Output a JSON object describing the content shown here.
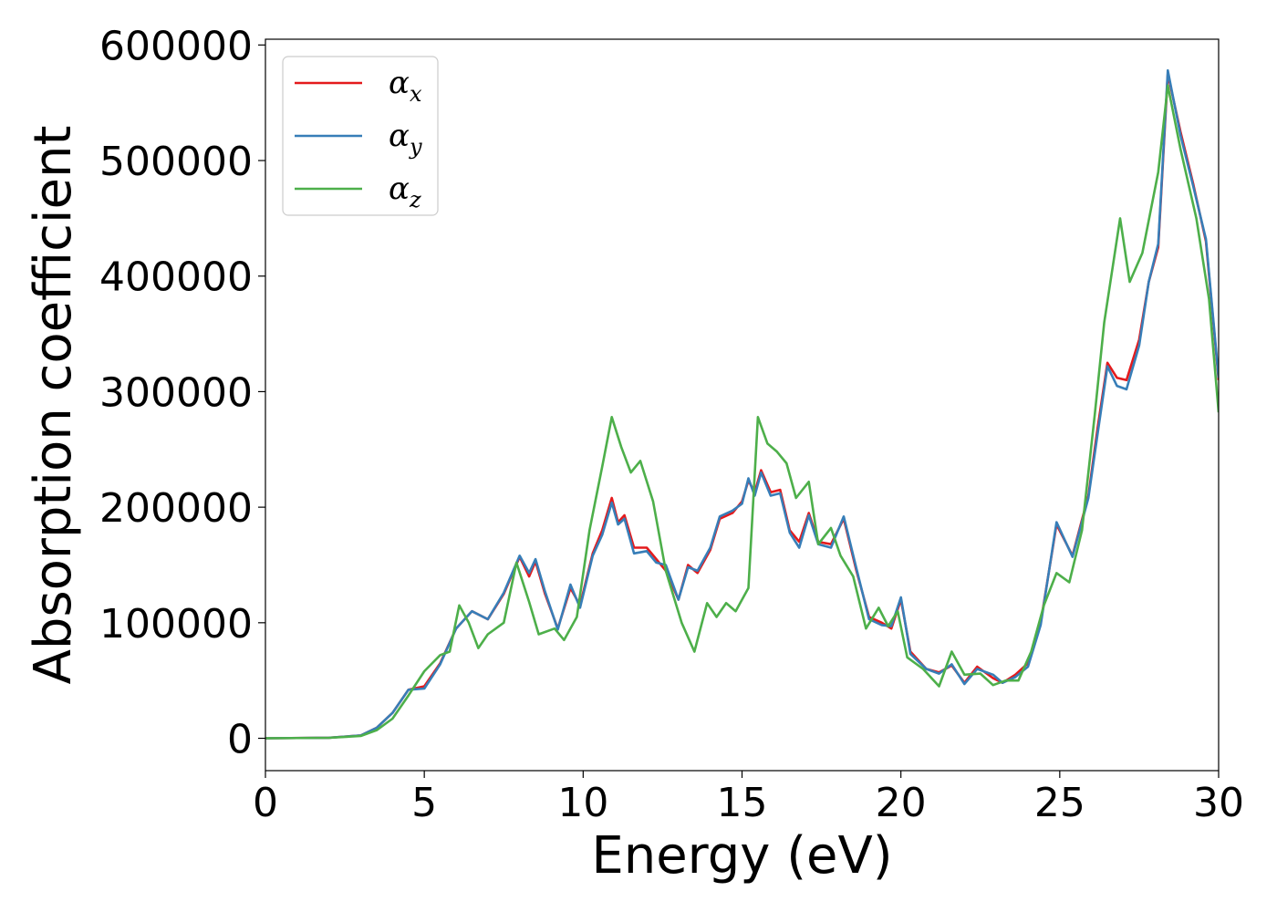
{
  "chart_data": {
    "type": "line",
    "title": "",
    "xlabel": "Energy (eV)",
    "ylabel": "Absorption coefficient",
    "xlim": [
      0,
      30
    ],
    "ylim": [
      -28000,
      605000
    ],
    "xticks": [
      0,
      5,
      10,
      15,
      20,
      25,
      30
    ],
    "xtick_labels": [
      "0",
      "5",
      "10",
      "15",
      "20",
      "25",
      "30"
    ],
    "yticks": [
      0,
      100000,
      200000,
      300000,
      400000,
      500000,
      600000
    ],
    "ytick_labels": [
      "0",
      "100000",
      "200000",
      "300000",
      "400000",
      "500000",
      "600000"
    ],
    "grid": false,
    "legend_position": "top-left",
    "series": [
      {
        "name": "α_x",
        "symbol": "α",
        "sub": "x",
        "color": "#e41a1c",
        "points": [
          [
            0,
            0
          ],
          [
            2,
            500
          ],
          [
            3,
            2500
          ],
          [
            3.5,
            9000
          ],
          [
            4,
            22000
          ],
          [
            4.5,
            42000
          ],
          [
            5,
            45000
          ],
          [
            5.5,
            65000
          ],
          [
            6,
            95000
          ],
          [
            6.5,
            110000
          ],
          [
            7,
            103000
          ],
          [
            7.5,
            125000
          ],
          [
            8,
            157000
          ],
          [
            8.3,
            140000
          ],
          [
            8.5,
            153000
          ],
          [
            8.8,
            125000
          ],
          [
            9.2,
            95000
          ],
          [
            9.6,
            130000
          ],
          [
            9.9,
            115000
          ],
          [
            10.3,
            160000
          ],
          [
            10.6,
            180000
          ],
          [
            10.9,
            208000
          ],
          [
            11.1,
            187000
          ],
          [
            11.3,
            193000
          ],
          [
            11.6,
            165000
          ],
          [
            12,
            165000
          ],
          [
            12.3,
            155000
          ],
          [
            12.6,
            145000
          ],
          [
            13,
            120000
          ],
          [
            13.3,
            150000
          ],
          [
            13.6,
            143000
          ],
          [
            14,
            163000
          ],
          [
            14.3,
            190000
          ],
          [
            14.7,
            195000
          ],
          [
            15,
            205000
          ],
          [
            15.2,
            223000
          ],
          [
            15.4,
            213000
          ],
          [
            15.6,
            232000
          ],
          [
            15.9,
            213000
          ],
          [
            16.2,
            215000
          ],
          [
            16.5,
            180000
          ],
          [
            16.8,
            170000
          ],
          [
            17.1,
            195000
          ],
          [
            17.4,
            170000
          ],
          [
            17.8,
            168000
          ],
          [
            18.2,
            190000
          ],
          [
            18.6,
            145000
          ],
          [
            19,
            105000
          ],
          [
            19.4,
            100000
          ],
          [
            19.7,
            95000
          ],
          [
            20,
            120000
          ],
          [
            20.3,
            75000
          ],
          [
            20.8,
            60000
          ],
          [
            21.2,
            57000
          ],
          [
            21.6,
            63000
          ],
          [
            22,
            48000
          ],
          [
            22.4,
            62000
          ],
          [
            22.9,
            52000
          ],
          [
            23.2,
            48000
          ],
          [
            23.6,
            55000
          ],
          [
            24,
            65000
          ],
          [
            24.4,
            100000
          ],
          [
            24.9,
            185000
          ],
          [
            25.4,
            158000
          ],
          [
            25.9,
            210000
          ],
          [
            26.2,
            270000
          ],
          [
            26.5,
            325000
          ],
          [
            26.8,
            312000
          ],
          [
            27.1,
            310000
          ],
          [
            27.5,
            345000
          ],
          [
            27.8,
            395000
          ],
          [
            28.1,
            425000
          ],
          [
            28.4,
            575000
          ],
          [
            28.8,
            525000
          ],
          [
            29.2,
            480000
          ],
          [
            29.6,
            430000
          ],
          [
            30,
            310000
          ]
        ]
      },
      {
        "name": "α_y",
        "symbol": "α",
        "sub": "y",
        "color": "#377eb8",
        "points": [
          [
            0,
            0
          ],
          [
            2,
            500
          ],
          [
            3,
            2500
          ],
          [
            3.5,
            9000
          ],
          [
            4,
            22000
          ],
          [
            4.5,
            42000
          ],
          [
            5,
            43000
          ],
          [
            5.5,
            64000
          ],
          [
            6,
            95000
          ],
          [
            6.5,
            110000
          ],
          [
            7,
            103000
          ],
          [
            7.5,
            126000
          ],
          [
            8,
            158000
          ],
          [
            8.3,
            143000
          ],
          [
            8.5,
            155000
          ],
          [
            8.8,
            127000
          ],
          [
            9.2,
            94000
          ],
          [
            9.6,
            133000
          ],
          [
            9.9,
            113000
          ],
          [
            10.3,
            158000
          ],
          [
            10.6,
            176000
          ],
          [
            10.9,
            204000
          ],
          [
            11.1,
            185000
          ],
          [
            11.3,
            190000
          ],
          [
            11.6,
            160000
          ],
          [
            12,
            162000
          ],
          [
            12.3,
            152000
          ],
          [
            12.6,
            150000
          ],
          [
            13,
            120000
          ],
          [
            13.3,
            148000
          ],
          [
            13.6,
            145000
          ],
          [
            14,
            165000
          ],
          [
            14.3,
            192000
          ],
          [
            14.7,
            197000
          ],
          [
            15,
            203000
          ],
          [
            15.2,
            225000
          ],
          [
            15.4,
            210000
          ],
          [
            15.6,
            230000
          ],
          [
            15.9,
            210000
          ],
          [
            16.2,
            212000
          ],
          [
            16.5,
            178000
          ],
          [
            16.8,
            165000
          ],
          [
            17.1,
            193000
          ],
          [
            17.4,
            168000
          ],
          [
            17.8,
            165000
          ],
          [
            18.2,
            192000
          ],
          [
            18.6,
            147000
          ],
          [
            19,
            103000
          ],
          [
            19.4,
            98000
          ],
          [
            19.7,
            97000
          ],
          [
            20,
            122000
          ],
          [
            20.3,
            73000
          ],
          [
            20.8,
            60000
          ],
          [
            21.2,
            56000
          ],
          [
            21.6,
            64000
          ],
          [
            22,
            47000
          ],
          [
            22.4,
            60000
          ],
          [
            22.9,
            55000
          ],
          [
            23.2,
            48000
          ],
          [
            23.6,
            53000
          ],
          [
            24,
            62000
          ],
          [
            24.4,
            98000
          ],
          [
            24.9,
            187000
          ],
          [
            25.4,
            157000
          ],
          [
            25.9,
            208000
          ],
          [
            26.2,
            265000
          ],
          [
            26.5,
            322000
          ],
          [
            26.8,
            305000
          ],
          [
            27.1,
            302000
          ],
          [
            27.5,
            340000
          ],
          [
            27.8,
            395000
          ],
          [
            28.1,
            428000
          ],
          [
            28.4,
            578000
          ],
          [
            28.8,
            522000
          ],
          [
            29.2,
            478000
          ],
          [
            29.6,
            432000
          ],
          [
            30,
            312000
          ]
        ]
      },
      {
        "name": "α_z",
        "symbol": "α",
        "sub": "z",
        "color": "#4daf4a",
        "points": [
          [
            0,
            0
          ],
          [
            2,
            400
          ],
          [
            3,
            2000
          ],
          [
            3.5,
            7000
          ],
          [
            4,
            17000
          ],
          [
            4.5,
            37000
          ],
          [
            5,
            58000
          ],
          [
            5.5,
            72000
          ],
          [
            5.8,
            75000
          ],
          [
            6.1,
            115000
          ],
          [
            6.4,
            100000
          ],
          [
            6.7,
            78000
          ],
          [
            7,
            90000
          ],
          [
            7.5,
            100000
          ],
          [
            7.9,
            152000
          ],
          [
            8.3,
            118000
          ],
          [
            8.6,
            90000
          ],
          [
            9.1,
            95000
          ],
          [
            9.4,
            85000
          ],
          [
            9.8,
            105000
          ],
          [
            10.2,
            180000
          ],
          [
            10.6,
            235000
          ],
          [
            10.9,
            278000
          ],
          [
            11.2,
            252000
          ],
          [
            11.5,
            230000
          ],
          [
            11.8,
            240000
          ],
          [
            12.2,
            205000
          ],
          [
            12.6,
            145000
          ],
          [
            13.1,
            100000
          ],
          [
            13.5,
            75000
          ],
          [
            13.9,
            117000
          ],
          [
            14.2,
            105000
          ],
          [
            14.5,
            117000
          ],
          [
            14.8,
            110000
          ],
          [
            15.2,
            130000
          ],
          [
            15.5,
            278000
          ],
          [
            15.8,
            255000
          ],
          [
            16.1,
            248000
          ],
          [
            16.4,
            238000
          ],
          [
            16.7,
            208000
          ],
          [
            17.1,
            222000
          ],
          [
            17.4,
            168000
          ],
          [
            17.8,
            182000
          ],
          [
            18.1,
            158000
          ],
          [
            18.5,
            140000
          ],
          [
            18.9,
            95000
          ],
          [
            19.3,
            113000
          ],
          [
            19.6,
            97000
          ],
          [
            19.9,
            110000
          ],
          [
            20.2,
            70000
          ],
          [
            20.7,
            60000
          ],
          [
            21.2,
            45000
          ],
          [
            21.6,
            75000
          ],
          [
            22,
            55000
          ],
          [
            22.5,
            56000
          ],
          [
            22.9,
            46000
          ],
          [
            23.3,
            50000
          ],
          [
            23.7,
            50000
          ],
          [
            24.1,
            75000
          ],
          [
            24.5,
            115000
          ],
          [
            24.9,
            143000
          ],
          [
            25.3,
            135000
          ],
          [
            25.7,
            180000
          ],
          [
            26.1,
            280000
          ],
          [
            26.4,
            360000
          ],
          [
            26.9,
            450000
          ],
          [
            27.2,
            395000
          ],
          [
            27.6,
            420000
          ],
          [
            28.1,
            490000
          ],
          [
            28.4,
            565000
          ],
          [
            28.8,
            510000
          ],
          [
            29.3,
            450000
          ],
          [
            29.7,
            380000
          ],
          [
            30,
            282000
          ]
        ]
      }
    ]
  }
}
